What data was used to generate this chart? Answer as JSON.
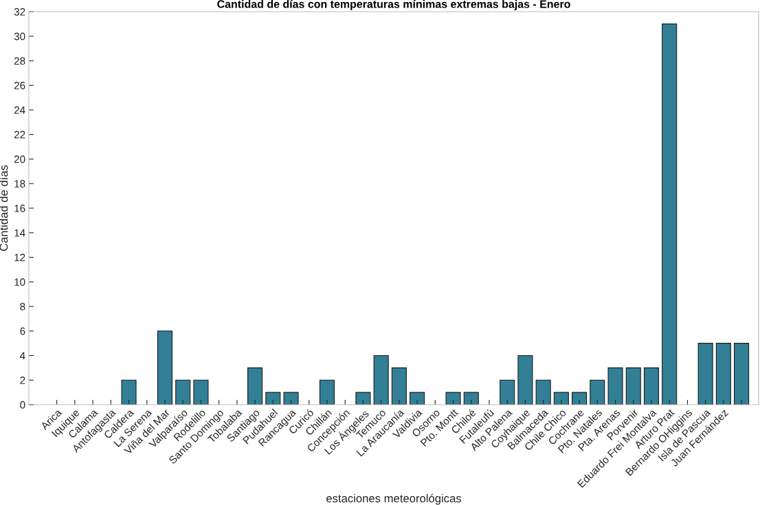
{
  "chart_data": {
    "type": "bar",
    "title": "Cantidad de días con temperaturas mínimas extremas bajas - Enero",
    "xlabel": "estaciones meteorológicas",
    "ylabel": "Cantidad de días",
    "categories": [
      "Arica",
      "Iquique",
      "Calama",
      "Antofagasta",
      "Caldera",
      "La Serena",
      "Viña del Mar",
      "Valparaíso",
      "Rodelillo",
      "Santo Domingo",
      "Tobalaba",
      "Santiago",
      "Pudahuel",
      "Rancagua",
      "Curicó",
      "Chillán",
      "Concepción",
      "Los Ángeles",
      "Temuco",
      "La Araucanía",
      "Valdivia",
      "Osorno",
      "Pto. Montt",
      "Chiloé",
      "Futaleufú",
      "Alto Palena",
      "Coyhaique",
      "Balmaceda",
      "Chile Chico",
      "Cochrane",
      "Pto. Natales",
      "Pta. Arenas",
      "Porvenir",
      "Eduardo Frei Montalva",
      "Arturo Prat",
      "Bernardo OHiggins",
      "Isla de Pascua",
      "Juan Fernández",
      null
    ],
    "values": [
      0,
      0,
      0,
      0,
      2,
      0,
      6,
      2,
      2,
      0,
      0,
      3,
      1,
      1,
      0,
      2,
      0,
      1,
      4,
      3,
      1,
      0,
      1,
      1,
      0,
      2,
      4,
      2,
      1,
      1,
      2,
      3,
      3,
      3,
      31,
      0,
      5,
      5,
      5
    ],
    "color": "#327f96",
    "ylim": [
      0,
      32
    ],
    "yticks": [
      0,
      2,
      4,
      6,
      8,
      10,
      12,
      14,
      16,
      18,
      20,
      22,
      24,
      26,
      28,
      30,
      32
    ],
    "grid": false,
    "legend": false
  }
}
